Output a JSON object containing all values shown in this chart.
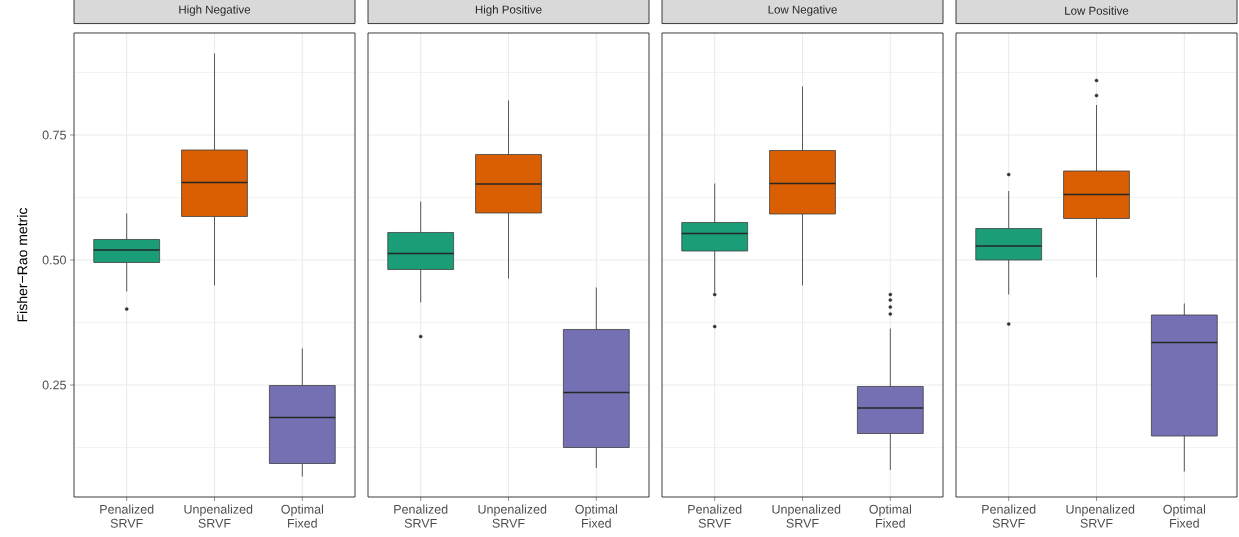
{
  "chart_data": [
    {
      "type": "box",
      "title": "High Negative",
      "ylabel": "Fisher−Rao metric",
      "categories": [
        "Penalized SRVF",
        "Unpenalized SRVF",
        "Optimal Fixed"
      ],
      "colors": [
        "#1b9e77",
        "#d95f02",
        "#7570b3"
      ],
      "grid": true,
      "ylim": [
        0.026,
        0.954
      ],
      "yticks": [
        0.25,
        {
          "value": 0.5,
          "label": "0.50"
        },
        0.75
      ],
      "boxes": [
        {
          "low": 0.437,
          "q1": 0.495,
          "median": 0.52,
          "q3": 0.541,
          "high": 0.593,
          "outliers": [
            0.402
          ]
        },
        {
          "low": 0.449,
          "q1": 0.587,
          "median": 0.655,
          "q3": 0.72,
          "high": 0.913
        },
        {
          "low": 0.067,
          "q1": 0.093,
          "median": 0.185,
          "q3": 0.249,
          "high": 0.323
        }
      ]
    },
    {
      "type": "box",
      "title": "High Positive",
      "categories": [
        "Penalized SRVF",
        "Unpenalized SRVF",
        "Optimal Fixed"
      ],
      "colors": [
        "#1b9e77",
        "#d95f02",
        "#7570b3"
      ],
      "grid": true,
      "tick_labels": "x",
      "ylim": [
        0.026,
        0.954
      ],
      "yticks": [
        0.25,
        0.5,
        0.75
      ],
      "boxes": [
        {
          "low": 0.415,
          "q1": 0.481,
          "median": 0.513,
          "q3": 0.555,
          "high": 0.617,
          "outliers": [
            0.347
          ]
        },
        {
          "low": 0.463,
          "q1": 0.594,
          "median": 0.652,
          "q3": 0.711,
          "high": 0.819
        },
        {
          "low": 0.084,
          "q1": 0.125,
          "median": 0.235,
          "q3": 0.361,
          "high": 0.445
        }
      ]
    },
    {
      "type": "box",
      "title": "Low Negative",
      "categories": [
        "Penalized SRVF",
        "Unpenalized SRVF",
        "Optimal Fixed"
      ],
      "colors": [
        "#1b9e77",
        "#d95f02",
        "#7570b3"
      ],
      "grid": true,
      "tick_labels": "x",
      "ylim": [
        0.026,
        0.954
      ],
      "yticks": [
        0.25,
        0.5,
        0.75
      ],
      "boxes": [
        {
          "low": 0.435,
          "q1": 0.518,
          "median": 0.553,
          "q3": 0.575,
          "high": 0.653,
          "outliers": [
            0.431,
            0.367
          ]
        },
        {
          "low": 0.449,
          "q1": 0.592,
          "median": 0.653,
          "q3": 0.719,
          "high": 0.847
        },
        {
          "low": 0.08,
          "q1": 0.153,
          "median": 0.204,
          "q3": 0.247,
          "high": 0.363,
          "outliers": [
            0.431,
            0.42,
            0.406,
            0.392
          ]
        }
      ]
    },
    {
      "type": "box",
      "title": "Low Positive",
      "categories": [
        "Penalized SRVF",
        "Unpenalized SRVF",
        "Optimal Fixed"
      ],
      "colors": [
        "#1b9e77",
        "#d95f02",
        "#7570b3"
      ],
      "grid": true,
      "tick_labels": "x",
      "ylim": [
        0.026,
        0.954
      ],
      "yticks": [
        0.25,
        0.5,
        0.75
      ],
      "boxes": [
        {
          "low": 0.431,
          "q1": 0.5,
          "median": 0.528,
          "q3": 0.563,
          "high": 0.638,
          "outliers": [
            0.671,
            0.372
          ]
        },
        {
          "low": 0.465,
          "q1": 0.583,
          "median": 0.631,
          "q3": 0.678,
          "high": 0.81,
          "outliers": [
            0.859,
            0.829
          ]
        },
        {
          "low": 0.077,
          "q1": 0.148,
          "median": 0.335,
          "q3": 0.39,
          "high": 0.413
        }
      ]
    }
  ]
}
